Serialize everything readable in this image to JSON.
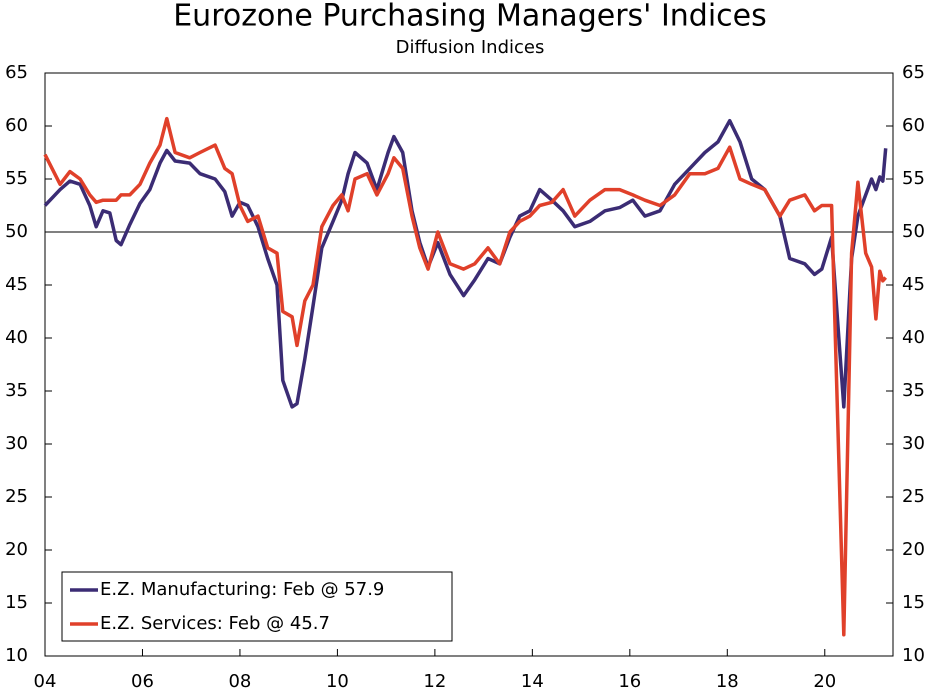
{
  "chart_data": {
    "type": "line",
    "title": "Eurozone Purchasing Managers' Indices",
    "subtitle": "Diffusion Indices",
    "x": [
      2004.0,
      2004.31,
      2004.51,
      2004.72,
      2004.92,
      2005.05,
      2005.19,
      2005.33,
      2005.46,
      2005.56,
      2005.74,
      2005.95,
      2006.15,
      2006.36,
      2006.5,
      2006.67,
      2006.97,
      2007.18,
      2007.49,
      2007.69,
      2007.84,
      2008.0,
      2008.16,
      2008.37,
      2008.57,
      2008.76,
      2008.88,
      2009.07,
      2009.17,
      2009.33,
      2009.5,
      2009.68,
      2009.91,
      2010.09,
      2010.22,
      2010.36,
      2010.61,
      2010.81,
      2011.04,
      2011.16,
      2011.34,
      2011.53,
      2011.69,
      2011.86,
      2012.06,
      2012.31,
      2012.59,
      2012.82,
      2013.09,
      2013.33,
      2013.54,
      2013.74,
      2013.95,
      2014.15,
      2014.4,
      2014.63,
      2014.87,
      2015.18,
      2015.49,
      2015.79,
      2016.06,
      2016.31,
      2016.62,
      2016.92,
      2017.23,
      2017.54,
      2017.81,
      2018.05,
      2018.26,
      2018.5,
      2018.77,
      2019.08,
      2019.28,
      2019.59,
      2019.79,
      2019.94,
      2020.14,
      2020.39,
      2020.55,
      2020.68,
      2020.84,
      2020.96,
      2021.05,
      2021.13,
      2021.19,
      2021.25
    ],
    "series": [
      {
        "name": "E.Z. Manufacturing: Feb @ 57.9",
        "color": "#3b2c74",
        "values": [
          52.5,
          54,
          54.8,
          54.5,
          52.5,
          50.5,
          52,
          51.8,
          49.2,
          48.8,
          50.7,
          52.7,
          54,
          56.5,
          57.7,
          56.7,
          56.5,
          55.5,
          55,
          53.8,
          51.5,
          52.8,
          52.5,
          50.5,
          47.5,
          45,
          36,
          33.5,
          33.8,
          38,
          43,
          48.5,
          51,
          53,
          55.5,
          57.5,
          56.5,
          54,
          57.5,
          59,
          57.5,
          52,
          49,
          46.7,
          49,
          46,
          44,
          45.5,
          47.5,
          47,
          49.5,
          51.5,
          52,
          54,
          53,
          52,
          50.5,
          51,
          52,
          52.3,
          53,
          51.5,
          52,
          54.5,
          56,
          57.5,
          58.5,
          60.5,
          58.5,
          55,
          54,
          51.5,
          47.5,
          47,
          46,
          46.5,
          49.5,
          33.5,
          47.5,
          51.5,
          53.5,
          55,
          54,
          55.2,
          54.8,
          57.9
        ]
      },
      {
        "name": "E.Z. Services: Feb @ 45.7",
        "color": "#e0402a",
        "values": [
          57.3,
          54.5,
          55.7,
          55,
          53.5,
          52.8,
          53,
          53,
          53,
          53.5,
          53.5,
          54.5,
          56.5,
          58.2,
          60.7,
          57.5,
          57,
          57.5,
          58.2,
          56,
          55.5,
          52.5,
          51,
          51.5,
          48.5,
          48,
          42.5,
          42,
          39.3,
          43.5,
          45,
          50.5,
          52.5,
          53.5,
          52,
          55,
          55.5,
          53.5,
          55.5,
          57,
          56,
          51.5,
          48.5,
          46.5,
          50,
          47,
          46.5,
          47,
          48.5,
          47,
          50,
          51,
          51.5,
          52.5,
          52.8,
          54,
          51.5,
          53,
          54,
          54,
          53.5,
          53,
          52.5,
          53.5,
          55.5,
          55.5,
          56,
          58,
          55,
          54.5,
          54,
          51.5,
          53,
          53.5,
          52,
          52.5,
          52.5,
          12,
          48,
          54.7,
          48,
          46.7,
          41.8,
          46.3,
          45.4,
          45.7
        ]
      }
    ],
    "xlim": [
      2004,
      2021.4
    ],
    "xticks": [
      {
        "value": 2004,
        "label": "04"
      },
      {
        "value": 2006,
        "label": "06"
      },
      {
        "value": 2008,
        "label": "08"
      },
      {
        "value": 2010,
        "label": "10"
      },
      {
        "value": 2012,
        "label": "12"
      },
      {
        "value": 2014,
        "label": "14"
      },
      {
        "value": 2016,
        "label": "16"
      },
      {
        "value": 2018,
        "label": "18"
      },
      {
        "value": 2020,
        "label": "20"
      }
    ],
    "ylim": [
      10,
      65
    ],
    "yticks": [
      10,
      15,
      20,
      25,
      30,
      35,
      40,
      45,
      50,
      55,
      60,
      65
    ],
    "reference_line": 50,
    "legend": "lower left",
    "grid": false
  }
}
